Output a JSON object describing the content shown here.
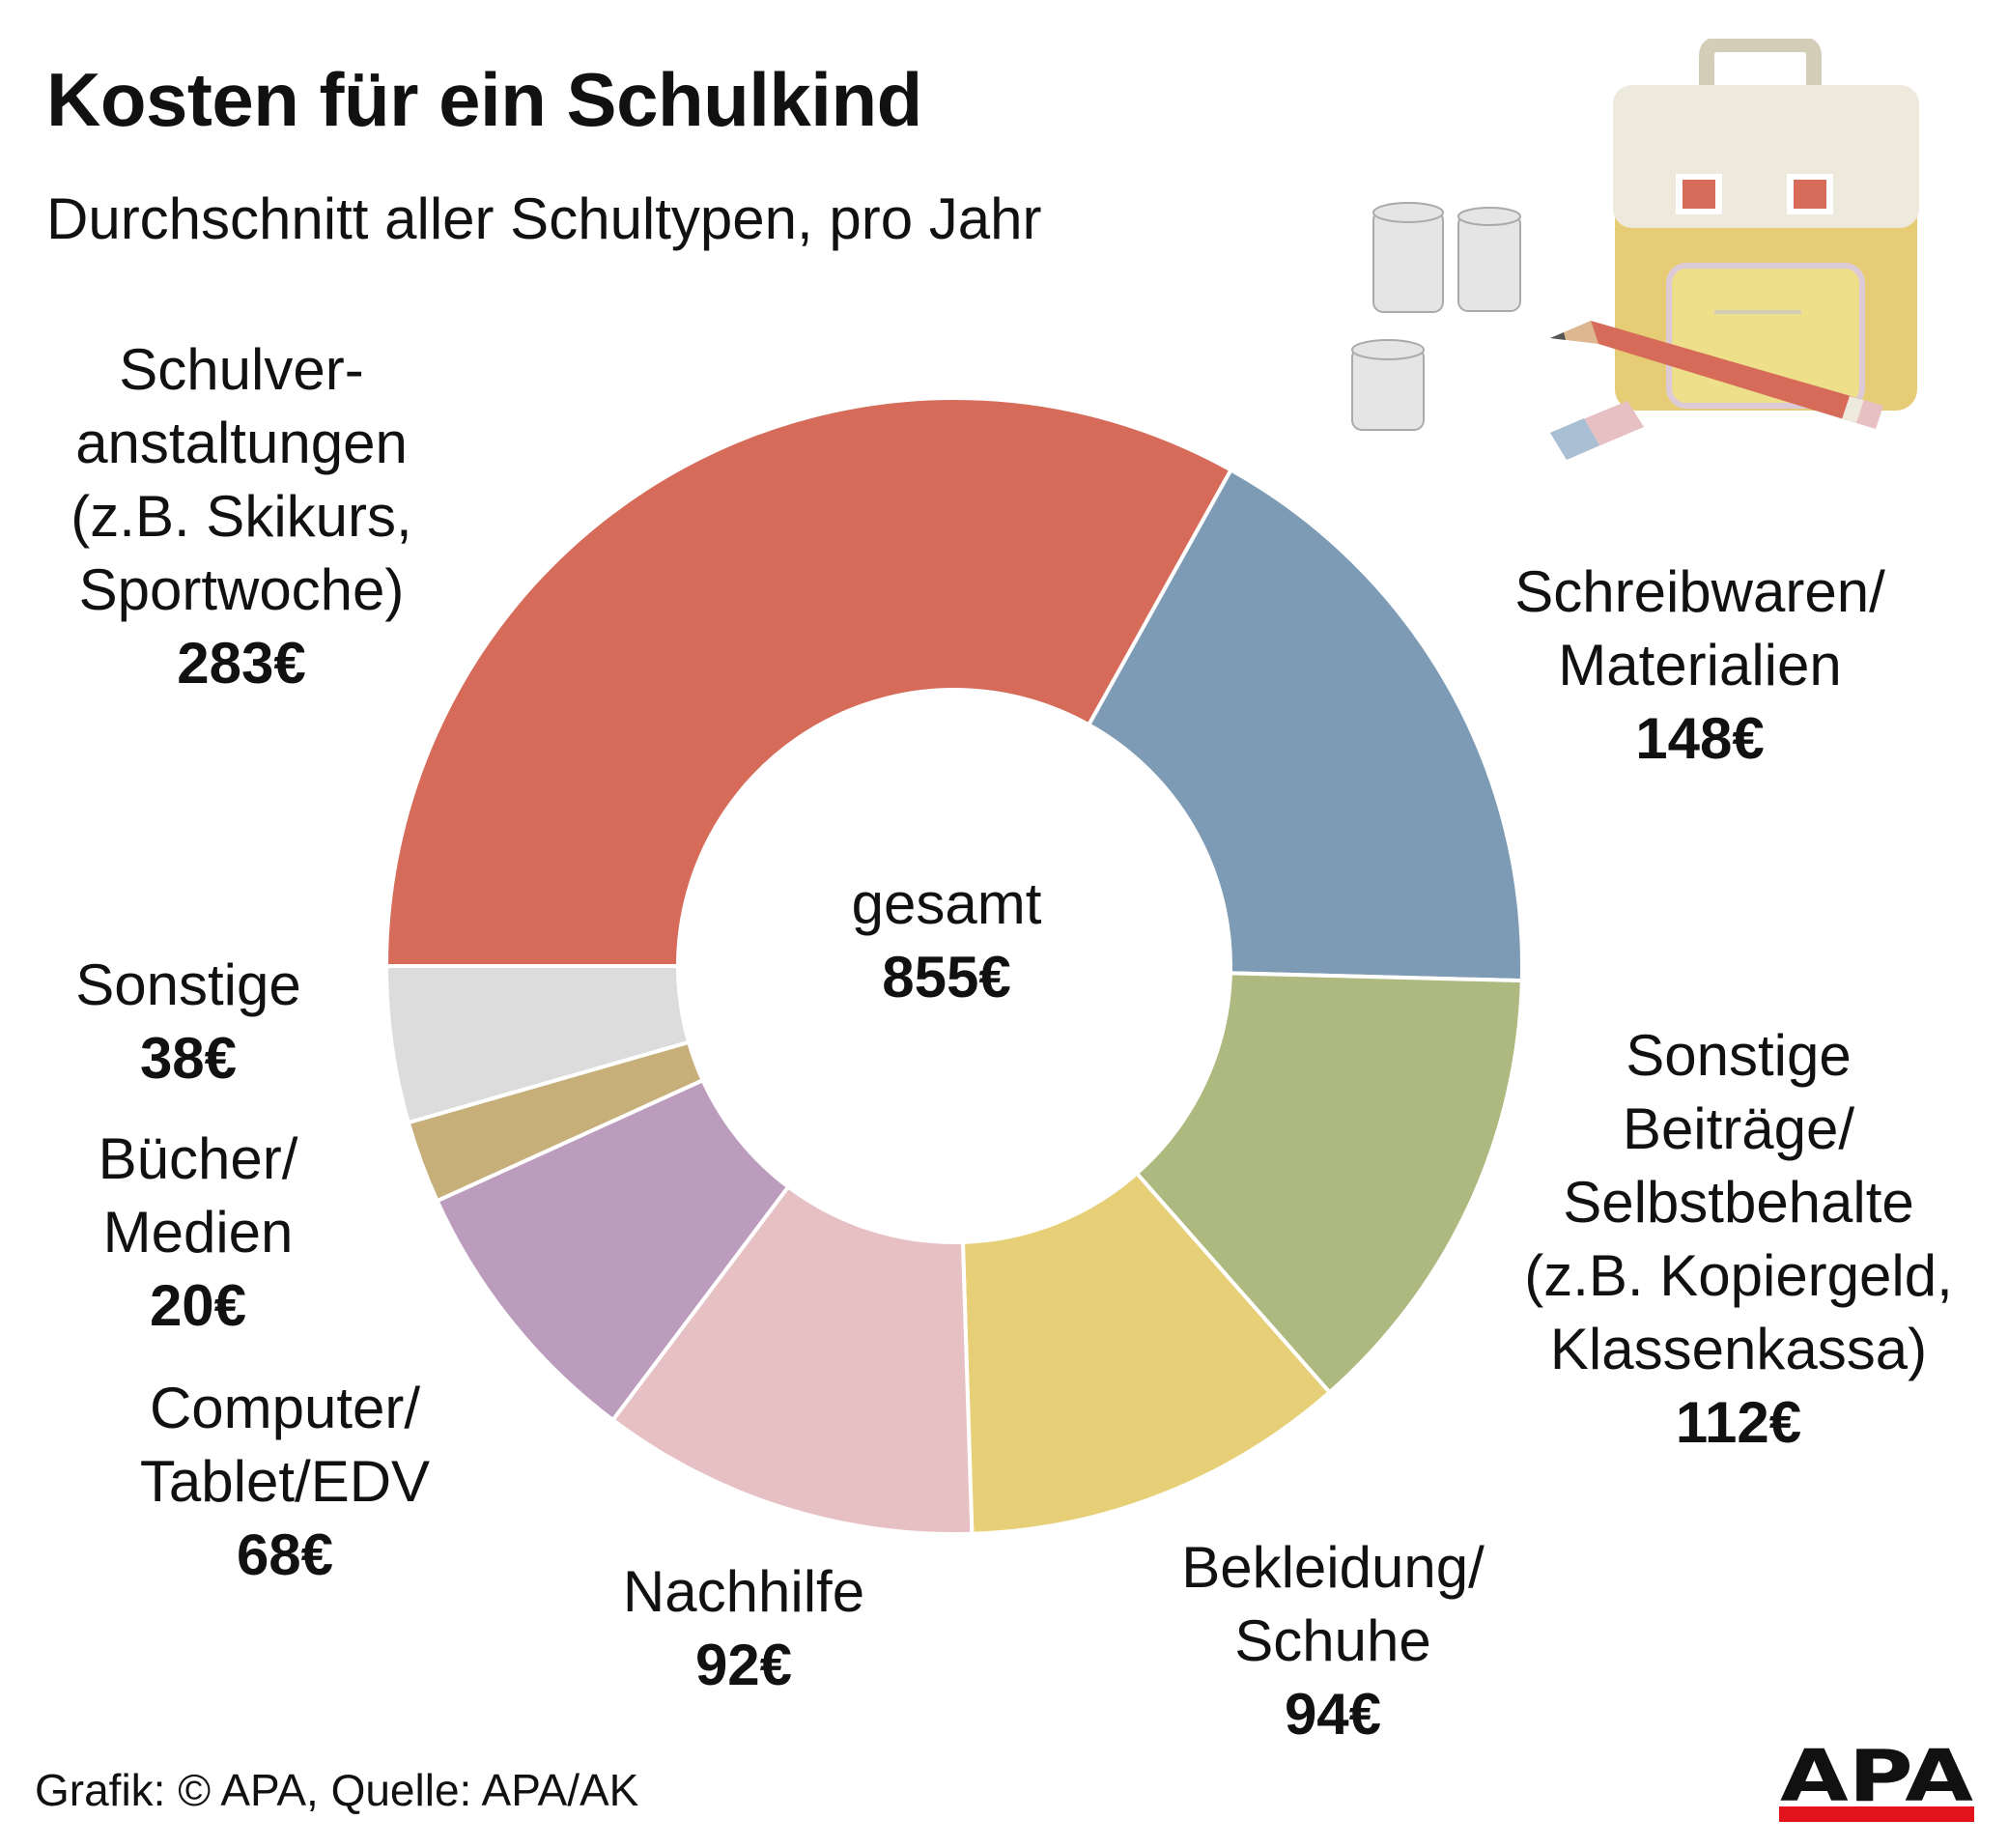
{
  "title": "Kosten für ein Schulkind",
  "subtitle": "Durchschnitt aller Schultypen, pro Jahr",
  "center": {
    "name": "gesamt",
    "value": "855€"
  },
  "source": "Grafik: © APA, Quelle: APA/AK",
  "logo": {
    "text": "APA",
    "colors": {
      "dark": "#111111",
      "red": "#e3131b"
    }
  },
  "illustration": {
    "icons": [
      "school-bag-icon",
      "coin-stack-icon",
      "pencil-icon",
      "eraser-icon"
    ]
  },
  "chart_data": {
    "type": "pie",
    "variant": "donut",
    "total": 855,
    "unit": "€",
    "start": "9 o'clock, clockwise",
    "slices": [
      {
        "name": "Schulver-\nanstaltungen\n(z.B. Skikurs,\nSportwoche)",
        "value": 283,
        "label": "283€",
        "color": "#d66b5a"
      },
      {
        "name": "Schreibwaren/\nMaterialien",
        "value": 148,
        "label": "148€",
        "color": "#7d9bb5"
      },
      {
        "name": "Sonstige\nBeiträge/\nSelbstbehalte\n(z.B. Kopiergeld,\nKlassenkassa)",
        "value": 112,
        "label": "112€",
        "color": "#adb97f"
      },
      {
        "name": "Bekleidung/\nSchuhe",
        "value": 94,
        "label": "94€",
        "color": "#e6cf77"
      },
      {
        "name": "Nachhilfe",
        "value": 92,
        "label": "92€",
        "color": "#e7c0c4"
      },
      {
        "name": "Computer/\nTablet/EDV",
        "value": 68,
        "label": "68€",
        "color": "#bb9cbd"
      },
      {
        "name": "Bücher/\nMedien",
        "value": 20,
        "label": "20€",
        "color": "#c6af78"
      },
      {
        "name": "Sonstige",
        "value": 38,
        "label": "38€",
        "color": "#dcdcdc"
      }
    ]
  }
}
